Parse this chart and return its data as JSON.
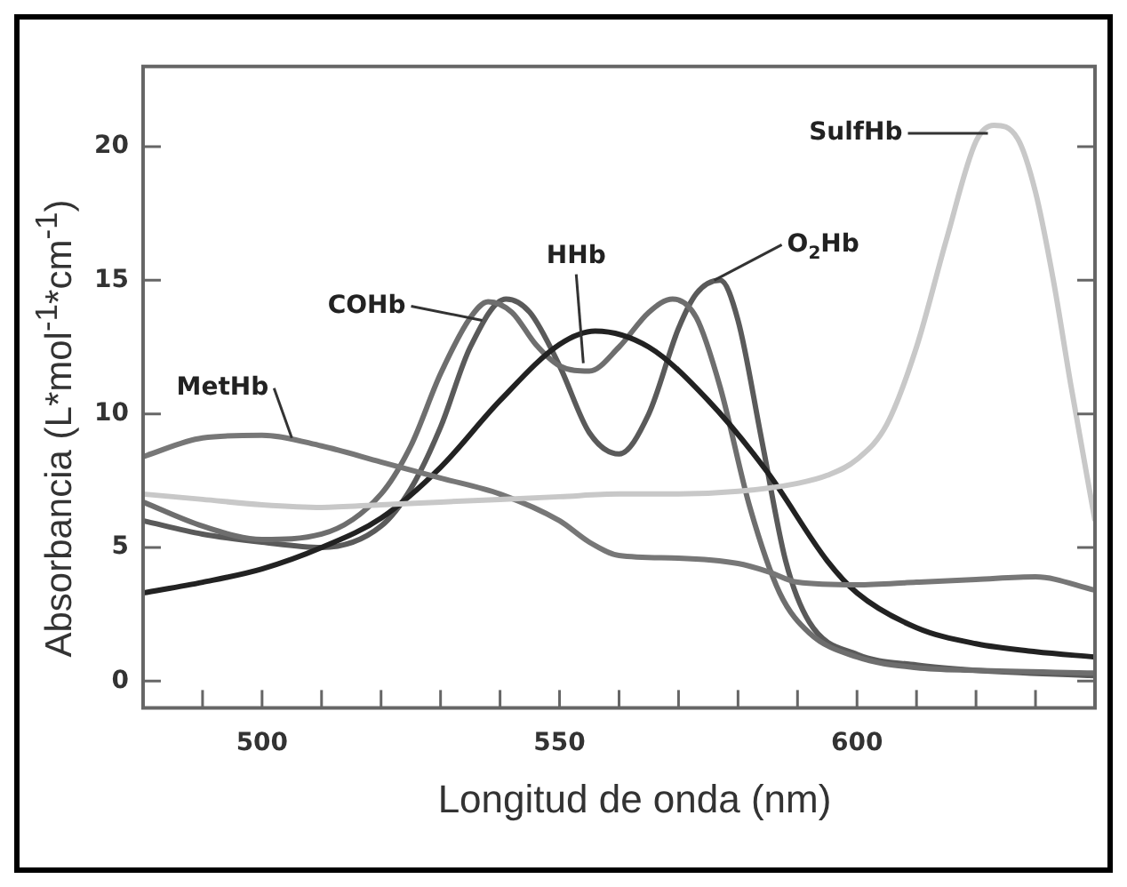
{
  "chart_data": {
    "type": "line",
    "xlabel": "Longitud de onda (nm)",
    "ylabel": "Absorbancia (L*mol$^{-1}$*cm$^{-1}$)",
    "xlim": [
      480,
      640
    ],
    "ylim": [
      -1,
      23
    ],
    "xticks": [
      {
        "value": 490,
        "label": null
      },
      {
        "value": 500,
        "label": "500"
      },
      {
        "value": 510,
        "label": null
      },
      {
        "value": 520,
        "label": null
      },
      {
        "value": 530,
        "label": null
      },
      {
        "value": 540,
        "label": null
      },
      {
        "value": 550,
        "label": "550"
      },
      {
        "value": 560,
        "label": null
      },
      {
        "value": 570,
        "label": null
      },
      {
        "value": 580,
        "label": null
      },
      {
        "value": 590,
        "label": null
      },
      {
        "value": 600,
        "label": "600"
      },
      {
        "value": 610,
        "label": null
      },
      {
        "value": 620,
        "label": null
      },
      {
        "value": 630,
        "label": null
      }
    ],
    "yticks": [
      0,
      5,
      10,
      15,
      20
    ],
    "grid": false,
    "legend": false,
    "marker": "none",
    "line_style": "solid",
    "series": [
      {
        "color": "#c8c8c8",
        "x": [
          480,
          490,
          500,
          510,
          520,
          530,
          540,
          550,
          560,
          570,
          580,
          590,
          595,
          600,
          605,
          610,
          615,
          620,
          623,
          627,
          630,
          633,
          636,
          640
        ],
        "values": [
          7.0,
          6.8,
          6.6,
          6.5,
          6.6,
          6.7,
          6.8,
          6.9,
          7.0,
          7.0,
          7.1,
          7.4,
          7.7,
          8.3,
          9.6,
          12.5,
          16.5,
          20.2,
          20.8,
          20.3,
          18.3,
          15.0,
          11.0,
          6.0
        ]
      },
      {
        "color": "#777777",
        "x": [
          480,
          490,
          500,
          510,
          520,
          530,
          540,
          550,
          555,
          560,
          570,
          580,
          585,
          590,
          600,
          610,
          620,
          630,
          640
        ],
        "values": [
          8.4,
          9.1,
          9.2,
          8.8,
          8.2,
          7.6,
          7.0,
          6.0,
          5.2,
          4.7,
          4.6,
          4.4,
          4.1,
          3.7,
          3.6,
          3.7,
          3.8,
          3.9,
          3.4
        ]
      },
      {
        "color": "#222222",
        "x": [
          480,
          490,
          500,
          510,
          520,
          530,
          540,
          550,
          556,
          565,
          575,
          585,
          595,
          600,
          610,
          620,
          630,
          640
        ],
        "values": [
          3.3,
          3.7,
          4.2,
          5.0,
          6.1,
          8.0,
          10.5,
          12.6,
          13.1,
          12.5,
          10.5,
          7.8,
          4.5,
          3.3,
          2.0,
          1.4,
          1.1,
          0.9
        ]
      },
      {
        "color": "#6e6e6e",
        "x": [
          480,
          490,
          500,
          510,
          520,
          525,
          530,
          535,
          538,
          542,
          546,
          550,
          555,
          560,
          565,
          569,
          573,
          577,
          582,
          587,
          592,
          600,
          610,
          620,
          640
        ],
        "values": [
          6.7,
          5.8,
          5.3,
          5.5,
          7.0,
          8.8,
          11.5,
          13.6,
          14.2,
          13.8,
          12.6,
          11.8,
          11.6,
          12.5,
          13.8,
          14.3,
          13.6,
          11.0,
          6.5,
          3.3,
          1.8,
          0.9,
          0.5,
          0.4,
          0.3
        ]
      },
      {
        "color": "#5a5a5a",
        "x": [
          480,
          490,
          500,
          510,
          520,
          525,
          530,
          535,
          541,
          545,
          550,
          555,
          560,
          565,
          570,
          573,
          577,
          580,
          584,
          588,
          592,
          600,
          610,
          620,
          640
        ],
        "values": [
          6.0,
          5.5,
          5.2,
          5.0,
          5.8,
          7.2,
          9.5,
          12.5,
          14.3,
          13.8,
          11.8,
          9.3,
          8.5,
          10.0,
          13.2,
          14.5,
          15.0,
          13.5,
          9.0,
          4.5,
          2.2,
          1.0,
          0.6,
          0.4,
          0.2
        ]
      }
    ],
    "annotations": [
      {
        "text": "SulfHb",
        "x": 622,
        "y": 20.5
      },
      {
        "text": "MetHb",
        "x": 505,
        "y": 9.1
      },
      {
        "text": "HHb",
        "x": 554,
        "y": 11.9
      },
      {
        "text": "COHb",
        "x": 537,
        "y": 13.5
      },
      {
        "text": "O$_{2}$Hb",
        "x": 576,
        "y": 15.0
      }
    ]
  }
}
